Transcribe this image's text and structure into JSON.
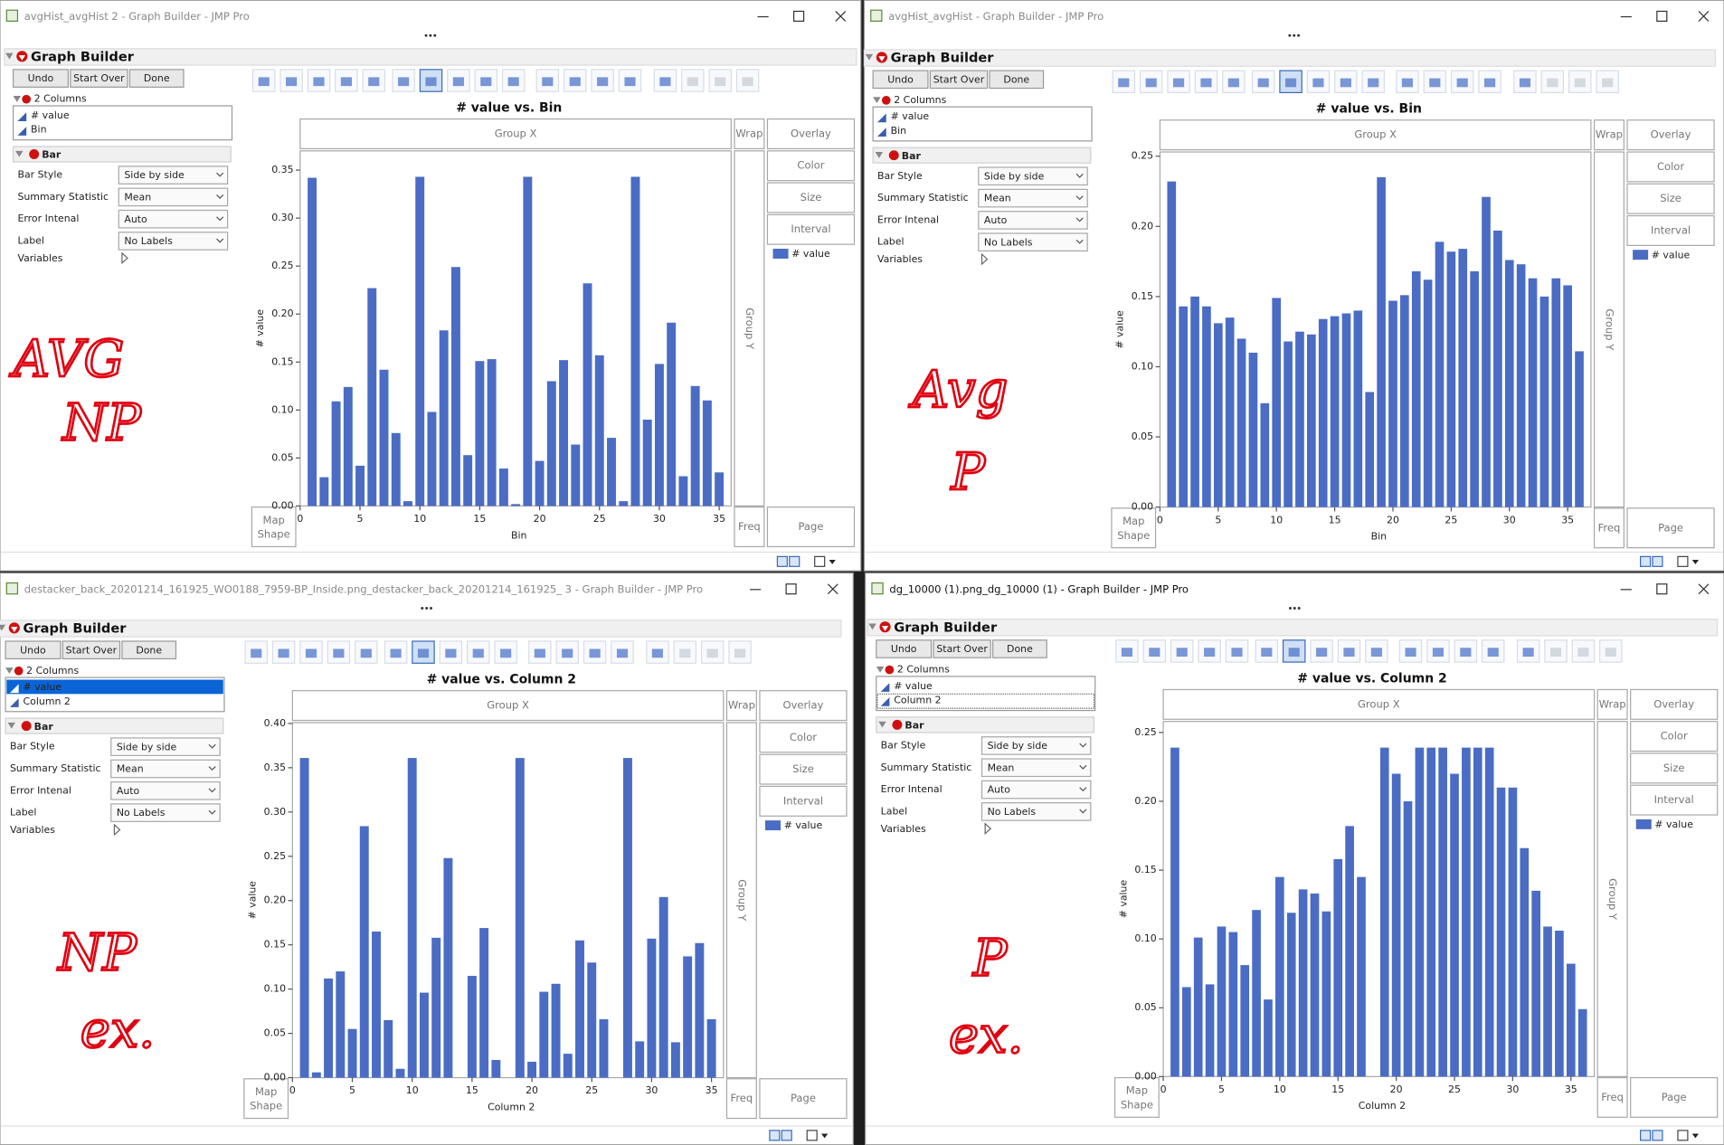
{
  "windows": [
    {
      "title": "avgHist_avgHist 2 - Graph Builder - JMP Pro",
      "panel": "Graph Builder",
      "buttons": [
        "Undo",
        "Start Over",
        "Done"
      ],
      "columns_header": "2 Columns",
      "columns": [
        "# value",
        "Bin"
      ],
      "bar_header": "Bar",
      "settings": [
        {
          "label": "Bar Style",
          "value": "Side by side"
        },
        {
          "label": "Summary Statistic",
          "value": "Mean"
        },
        {
          "label": "Error Intenal",
          "value": "Auto"
        },
        {
          "label": "Label",
          "value": "No Labels"
        }
      ],
      "variables": "Variables",
      "zones": {
        "group_x": "Group X",
        "wrap": "Wrap",
        "overlay": "Overlay",
        "color": "Color",
        "size": "Size",
        "interval": "Interval",
        "group_y": "Group Y",
        "map_shape": [
          "Map",
          "Shape"
        ],
        "freq": "Freq",
        "page": "Page"
      },
      "note": [
        "AVG",
        "NP"
      ],
      "chart_data": {
        "type": "bar",
        "title": "# value vs. Bin",
        "xlabel": "Bin",
        "ylabel": "# value",
        "x": [
          1,
          2,
          3,
          4,
          5,
          6,
          7,
          8,
          9,
          10,
          11,
          12,
          13,
          14,
          15,
          16,
          17,
          18,
          19,
          20,
          21,
          22,
          23,
          24,
          25,
          26,
          27,
          28,
          29,
          30,
          31,
          32,
          33,
          34,
          35
        ],
        "series": [
          {
            "name": "# value",
            "color": "#4a6cc4",
            "values": [
              0.342,
              0.03,
              0.109,
              0.124,
              0.042,
              0.227,
              0.142,
              0.076,
              0.005,
              0.343,
              0.098,
              0.183,
              0.249,
              0.053,
              0.151,
              0.153,
              0.039,
              0.002,
              0.343,
              0.047,
              0.13,
              0.152,
              0.064,
              0.232,
              0.157,
              0.071,
              0.005,
              0.343,
              0.09,
              0.148,
              0.191,
              0.031,
              0.125,
              0.11,
              0.035
            ]
          }
        ],
        "xlim": [
          0,
          36
        ],
        "xticks": [
          0,
          5,
          10,
          15,
          20,
          25,
          30,
          35
        ],
        "ylim": [
          0,
          0.37
        ],
        "yticks": [
          {
            "value": 0,
            "label": "0.00"
          },
          {
            "value": 0.05,
            "label": "0.05"
          },
          {
            "value": 0.1,
            "label": "0.10"
          },
          {
            "value": 0.15,
            "label": "0.15"
          },
          {
            "value": 0.2,
            "label": "0.20"
          },
          {
            "value": 0.25,
            "label": "0.25"
          },
          {
            "value": 0.3,
            "label": "0.30"
          },
          {
            "value": 0.35,
            "label": "0.35"
          }
        ]
      }
    },
    {
      "title": "avgHist_avgHist - Graph Builder - JMP Pro",
      "panel": "Graph Builder",
      "buttons": [
        "Undo",
        "Start Over",
        "Done"
      ],
      "columns_header": "2 Columns",
      "columns": [
        "# value",
        "Bin"
      ],
      "bar_header": "Bar",
      "settings": [
        {
          "label": "Bar Style",
          "value": "Side by side"
        },
        {
          "label": "Summary Statistic",
          "value": "Mean"
        },
        {
          "label": "Error Intenal",
          "value": "Auto"
        },
        {
          "label": "Label",
          "value": "No Labels"
        }
      ],
      "variables": "Variables",
      "zones": {
        "group_x": "Group X",
        "wrap": "Wrap",
        "overlay": "Overlay",
        "color": "Color",
        "size": "Size",
        "interval": "Interval",
        "group_y": "Group Y",
        "map_shape": [
          "Map",
          "Shape"
        ],
        "freq": "Freq",
        "page": "Page"
      },
      "note": [
        "Avg",
        "P"
      ],
      "chart_data": {
        "type": "bar",
        "title": "# value vs. Bin",
        "xlabel": "Bin",
        "ylabel": "# value",
        "x": [
          1,
          2,
          3,
          4,
          5,
          6,
          7,
          8,
          9,
          10,
          11,
          12,
          13,
          14,
          15,
          16,
          17,
          18,
          19,
          20,
          21,
          22,
          23,
          24,
          25,
          26,
          27,
          28,
          29,
          30,
          31,
          32,
          33,
          34,
          35,
          36
        ],
        "series": [
          {
            "name": "# value",
            "color": "#4a6cc4",
            "values": [
              0.232,
              0.143,
              0.15,
              0.143,
              0.131,
              0.135,
              0.12,
              0.11,
              0.074,
              0.149,
              0.118,
              0.125,
              0.123,
              0.134,
              0.136,
              0.138,
              0.14,
              0.082,
              0.235,
              0.147,
              0.151,
              0.168,
              0.162,
              0.189,
              0.182,
              0.184,
              0.168,
              0.221,
              0.197,
              0.176,
              0.173,
              0.163,
              0.15,
              0.163,
              0.158,
              0.111
            ]
          }
        ],
        "xlim": [
          0,
          37
        ],
        "xticks": [
          0,
          5,
          10,
          15,
          20,
          25,
          30,
          35
        ],
        "ylim": [
          0,
          0.253
        ],
        "yticks": [
          {
            "value": 0,
            "label": "0.00"
          },
          {
            "value": 0.05,
            "label": "0.05"
          },
          {
            "value": 0.1,
            "label": "0.10"
          },
          {
            "value": 0.15,
            "label": "0.15"
          },
          {
            "value": 0.2,
            "label": "0.20"
          },
          {
            "value": 0.25,
            "label": "0.25"
          }
        ]
      }
    },
    {
      "title": "destacker_back_20201214_161925_WO0188_7959-BP_Inside.png_destacker_back_20201214_161925_ 3 - Graph Builder - JMP Pro",
      "panel": "Graph Builder",
      "buttons": [
        "Undo",
        "Start Over",
        "Done"
      ],
      "columns_header": "2 Columns",
      "columns": [
        "# value",
        "Column 2"
      ],
      "bar_header": "Bar",
      "settings": [
        {
          "label": "Bar Style",
          "value": "Side by side"
        },
        {
          "label": "Summary Statistic",
          "value": "Mean"
        },
        {
          "label": "Error Intenal",
          "value": "Auto"
        },
        {
          "label": "Label",
          "value": "No Labels"
        }
      ],
      "variables": "Variables",
      "zones": {
        "group_x": "Group X",
        "wrap": "Wrap",
        "overlay": "Overlay",
        "color": "Color",
        "size": "Size",
        "interval": "Interval",
        "group_y": "Group Y",
        "map_shape": [
          "Map",
          "Shape"
        ],
        "freq": "Freq",
        "page": "Page"
      },
      "note": [
        "NP",
        "ex."
      ],
      "chart_data": {
        "type": "bar",
        "title": "# value vs. Column 2",
        "xlabel": "Column 2",
        "ylabel": "# value",
        "x": [
          1,
          2,
          3,
          4,
          5,
          6,
          7,
          8,
          9,
          10,
          11,
          12,
          13,
          15,
          16,
          17,
          19,
          20,
          21,
          22,
          23,
          24,
          25,
          26,
          28,
          29,
          30,
          31,
          32,
          33,
          34,
          35
        ],
        "series": [
          {
            "name": "# value",
            "color": "#4a6cc4",
            "values": [
              0.361,
              0.006,
              0.112,
              0.12,
              0.055,
              0.284,
              0.165,
              0.065,
              0.01,
              0.361,
              0.096,
              0.158,
              0.248,
              0.115,
              0.169,
              0.02,
              0.361,
              0.018,
              0.097,
              0.106,
              0.027,
              0.155,
              0.13,
              0.066,
              0.361,
              0.041,
              0.157,
              0.204,
              0.04,
              0.137,
              0.152,
              0.066
            ]
          }
        ],
        "xlim": [
          0,
          36
        ],
        "xticks": [
          0,
          5,
          10,
          15,
          20,
          25,
          30,
          35
        ],
        "ylim": [
          0,
          0.401
        ],
        "yticks": [
          {
            "value": 0,
            "label": "0.00"
          },
          {
            "value": 0.05,
            "label": "0.05"
          },
          {
            "value": 0.1,
            "label": "0.10"
          },
          {
            "value": 0.15,
            "label": "0.15"
          },
          {
            "value": 0.2,
            "label": "0.20"
          },
          {
            "value": 0.25,
            "label": "0.25"
          },
          {
            "value": 0.3,
            "label": "0.30"
          },
          {
            "value": 0.35,
            "label": "0.35"
          },
          {
            "value": 0.4,
            "label": "0.40"
          }
        ]
      }
    },
    {
      "title": "dg_10000 (1).png_dg_10000 (1) - Graph Builder - JMP Pro",
      "panel": "Graph Builder",
      "buttons": [
        "Undo",
        "Start Over",
        "Done"
      ],
      "columns_header": "2 Columns",
      "columns": [
        "# value",
        "Column 2"
      ],
      "bar_header": "Bar",
      "settings": [
        {
          "label": "Bar Style",
          "value": "Side by side"
        },
        {
          "label": "Summary Statistic",
          "value": "Mean"
        },
        {
          "label": "Error Intenal",
          "value": "Auto"
        },
        {
          "label": "Label",
          "value": "No Labels"
        }
      ],
      "variables": "Variables",
      "zones": {
        "group_x": "Group X",
        "wrap": "Wrap",
        "overlay": "Overlay",
        "color": "Color",
        "size": "Size",
        "interval": "Interval",
        "group_y": "Group Y",
        "map_shape": [
          "Map",
          "Shape"
        ],
        "freq": "Freq",
        "page": "Page"
      },
      "note": [
        "P",
        "ex."
      ],
      "chart_data": {
        "type": "bar",
        "title": "# value vs. Column 2",
        "xlabel": "Column 2",
        "ylabel": "# value",
        "x": [
          1,
          2,
          3,
          4,
          5,
          6,
          7,
          8,
          9,
          10,
          11,
          12,
          13,
          14,
          15,
          16,
          17,
          19,
          20,
          21,
          22,
          23,
          24,
          25,
          26,
          27,
          28,
          29,
          30,
          31,
          32,
          33,
          34,
          35,
          36
        ],
        "series": [
          {
            "name": "# value",
            "color": "#4a6cc4",
            "values": [
              0.239,
              0.065,
              0.101,
              0.067,
              0.109,
              0.105,
              0.081,
              0.121,
              0.056,
              0.145,
              0.119,
              0.136,
              0.133,
              0.12,
              0.158,
              0.182,
              0.145,
              0.239,
              0.22,
              0.2,
              0.239,
              0.239,
              0.239,
              0.22,
              0.239,
              0.239,
              0.239,
              0.21,
              0.21,
              0.166,
              0.135,
              0.109,
              0.106,
              0.082,
              0.049
            ]
          }
        ],
        "xlim": [
          0,
          37
        ],
        "xticks": [
          0,
          5,
          10,
          15,
          20,
          25,
          30,
          35
        ],
        "ylim": [
          0,
          0.258
        ],
        "yticks": [
          {
            "value": 0,
            "label": "0.00"
          },
          {
            "value": 0.05,
            "label": "0.05"
          },
          {
            "value": 0.1,
            "label": "0.10"
          },
          {
            "value": 0.15,
            "label": "0.15"
          },
          {
            "value": 0.2,
            "label": "0.20"
          },
          {
            "value": 0.25,
            "label": "0.25"
          }
        ]
      }
    }
  ]
}
